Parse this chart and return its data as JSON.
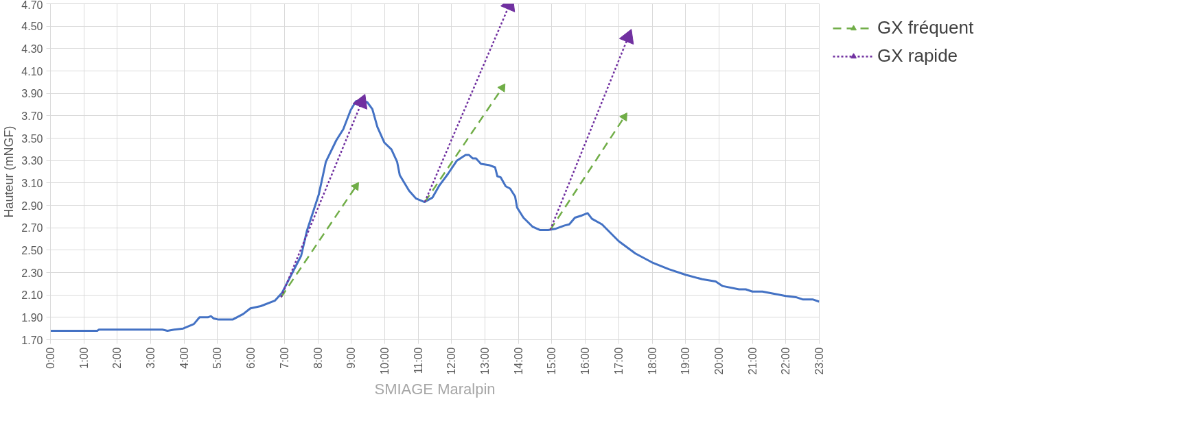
{
  "chart_data": {
    "type": "line",
    "xlabel": "SMIAGE Maralpin",
    "ylabel": "Hauteur (mNGF)",
    "xlim": [
      0,
      23
    ],
    "ylim": [
      1.7,
      4.7
    ],
    "xticks": [
      {
        "value": 0,
        "label": "0:00"
      },
      {
        "value": 1,
        "label": "1:00"
      },
      {
        "value": 2,
        "label": "2:00"
      },
      {
        "value": 3,
        "label": "3:00"
      },
      {
        "value": 4,
        "label": "4:00"
      },
      {
        "value": 5,
        "label": "5:00"
      },
      {
        "value": 6,
        "label": "6:00"
      },
      {
        "value": 7,
        "label": "7:00"
      },
      {
        "value": 8,
        "label": "8:00"
      },
      {
        "value": 9,
        "label": "9:00"
      },
      {
        "value": 10,
        "label": "10:00"
      },
      {
        "value": 11,
        "label": "11:00"
      },
      {
        "value": 12,
        "label": "12:00"
      },
      {
        "value": 13,
        "label": "13:00"
      },
      {
        "value": 14,
        "label": "14:00"
      },
      {
        "value": 15,
        "label": "15:00"
      },
      {
        "value": 16,
        "label": "16:00"
      },
      {
        "value": 17,
        "label": "17:00"
      },
      {
        "value": 18,
        "label": "18:00"
      },
      {
        "value": 19,
        "label": "19:00"
      },
      {
        "value": 20,
        "label": "20:00"
      },
      {
        "value": 21,
        "label": "21:00"
      },
      {
        "value": 22,
        "label": "22:00"
      },
      {
        "value": 23,
        "label": "23:00"
      }
    ],
    "yticks": [
      {
        "value": 1.7,
        "label": "1.70"
      },
      {
        "value": 1.9,
        "label": "1.90"
      },
      {
        "value": 2.1,
        "label": "2.10"
      },
      {
        "value": 2.3,
        "label": "2.30"
      },
      {
        "value": 2.5,
        "label": "2.50"
      },
      {
        "value": 2.7,
        "label": "2.70"
      },
      {
        "value": 2.9,
        "label": "2.90"
      },
      {
        "value": 3.1,
        "label": "3.10"
      },
      {
        "value": 3.3,
        "label": "3.30"
      },
      {
        "value": 3.5,
        "label": "3.50"
      },
      {
        "value": 3.7,
        "label": "3.70"
      },
      {
        "value": 3.9,
        "label": "3.90"
      },
      {
        "value": 4.1,
        "label": "4.10"
      },
      {
        "value": 4.3,
        "label": "4.30"
      },
      {
        "value": 4.5,
        "label": "4.50"
      },
      {
        "value": 4.7,
        "label": "4.70"
      }
    ],
    "grid": true,
    "legend": "right",
    "series": [
      {
        "color": "#4472c4",
        "line_style": "solid",
        "x": [
          0,
          1.4,
          1.45,
          3.35,
          3.5,
          3.7,
          3.97,
          4.29,
          4.46,
          4.71,
          4.8,
          4.88,
          5.03,
          5.45,
          5.77,
          5.98,
          6.29,
          6.72,
          6.93,
          7.24,
          7.5,
          7.67,
          8.03,
          8.24,
          8.55,
          8.76,
          8.98,
          9.14,
          9.31,
          9.48,
          9.63,
          9.78,
          9.99,
          10.2,
          10.37,
          10.45,
          10.73,
          10.94,
          11.19,
          11.43,
          11.64,
          11.89,
          12.16,
          12.42,
          12.52,
          12.63,
          12.73,
          12.88,
          13.11,
          13.3,
          13.37,
          13.47,
          13.62,
          13.75,
          13.9,
          13.96,
          14.15,
          14.42,
          14.64,
          14.89,
          15.1,
          15.38,
          15.52,
          15.69,
          15.9,
          16.07,
          16.2,
          16.5,
          17.0,
          17.5,
          18.0,
          18.5,
          19.0,
          19.5,
          19.9,
          20.1,
          20.6,
          20.8,
          21.0,
          21.3,
          22.0,
          22.3,
          22.5,
          22.8,
          23.0
        ],
        "values": [
          1.78,
          1.78,
          1.79,
          1.79,
          1.78,
          1.79,
          1.8,
          1.84,
          1.9,
          1.9,
          1.91,
          1.89,
          1.88,
          1.88,
          1.93,
          1.98,
          2.0,
          2.05,
          2.12,
          2.3,
          2.45,
          2.67,
          3.0,
          3.29,
          3.48,
          3.58,
          3.75,
          3.83,
          3.84,
          3.82,
          3.76,
          3.6,
          3.46,
          3.4,
          3.29,
          3.17,
          3.03,
          2.96,
          2.93,
          2.97,
          3.08,
          3.18,
          3.3,
          3.35,
          3.35,
          3.32,
          3.32,
          3.27,
          3.26,
          3.24,
          3.16,
          3.15,
          3.07,
          3.05,
          2.98,
          2.88,
          2.79,
          2.71,
          2.68,
          2.68,
          2.69,
          2.72,
          2.73,
          2.79,
          2.81,
          2.83,
          2.78,
          2.73,
          2.58,
          2.47,
          2.39,
          2.33,
          2.28,
          2.24,
          2.22,
          2.18,
          2.15,
          2.15,
          2.13,
          2.13,
          2.09,
          2.08,
          2.06,
          2.06,
          2.04
        ]
      },
      {
        "name": "GX fréquent",
        "color": "#70ad47",
        "line_style": "dashed",
        "marker": "triangle",
        "x": [
          6.9,
          9.14,
          null,
          11.2,
          13.52,
          null,
          14.95,
          17.17
        ],
        "values": [
          2.08,
          3.07,
          null,
          2.93,
          3.95,
          null,
          2.68,
          3.69
        ]
      },
      {
        "name": "GX rapide",
        "color": "#7030a0",
        "line_style": "dotted",
        "marker": "triangle",
        "x": [
          6.9,
          9.31,
          null,
          11.2,
          13.73,
          null,
          14.95,
          17.28
        ],
        "values": [
          2.08,
          3.82,
          null,
          2.93,
          4.69,
          null,
          2.68,
          4.4
        ]
      }
    ]
  }
}
